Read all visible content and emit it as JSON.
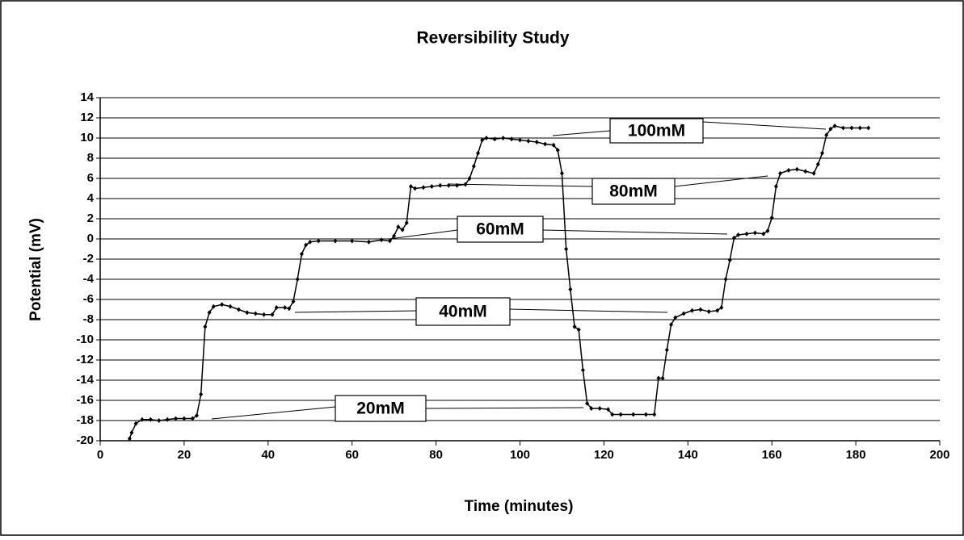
{
  "chart_data": {
    "type": "line",
    "title": "Reversibility Study",
    "xlabel": "Time (minutes)",
    "ylabel": "Potential (mV)",
    "xlim": [
      0,
      200
    ],
    "xticks": [
      0,
      20,
      40,
      60,
      80,
      100,
      120,
      140,
      160,
      180,
      200
    ],
    "ylim": [
      -20,
      14
    ],
    "yticks": [
      -20,
      -18,
      -16,
      -14,
      -12,
      -10,
      -8,
      -6,
      -4,
      -2,
      0,
      2,
      4,
      6,
      8,
      10,
      12,
      14
    ],
    "grid": true,
    "annotations": [
      "100mM",
      "80mM",
      "60mM",
      "40mM",
      "20mM"
    ],
    "series": [
      {
        "color": "#000000",
        "x": [
          7,
          7.5,
          8.5,
          10,
          12,
          14,
          16,
          18,
          20,
          22,
          23,
          24,
          25,
          26,
          27,
          29,
          31,
          33,
          35,
          37,
          39,
          41,
          42,
          44,
          45,
          46,
          47,
          48,
          49,
          50,
          52,
          56,
          60,
          64,
          67,
          69,
          70,
          71,
          72,
          73,
          74,
          75,
          77,
          79,
          81,
          83,
          85,
          87,
          88,
          89,
          90,
          91,
          92,
          94,
          96,
          98,
          100,
          102,
          104,
          106,
          108,
          109,
          110,
          111,
          112,
          113,
          114,
          115,
          116,
          117,
          119,
          121,
          122,
          124,
          127,
          130,
          132,
          133,
          134,
          135,
          136,
          137,
          139,
          141,
          143,
          145,
          147,
          148,
          149,
          150,
          151,
          152,
          154,
          156,
          158,
          159,
          160,
          161,
          162,
          164,
          166,
          168,
          170,
          171,
          172,
          173,
          174,
          175,
          177,
          179,
          181,
          183
        ],
        "values": [
          -19.8,
          -19.2,
          -18.3,
          -17.9,
          -17.9,
          -18,
          -17.9,
          -17.8,
          -17.8,
          -17.8,
          -17.5,
          -15.4,
          -8.7,
          -7.3,
          -6.7,
          -6.5,
          -6.7,
          -7,
          -7.3,
          -7.4,
          -7.5,
          -7.5,
          -6.8,
          -6.8,
          -6.9,
          -6.2,
          -4,
          -1.5,
          -0.6,
          -0.3,
          -0.2,
          -0.2,
          -0.2,
          -0.3,
          -0.1,
          -0.2,
          0.3,
          1.2,
          0.9,
          1.6,
          5.2,
          5,
          5.1,
          5.2,
          5.3,
          5.3,
          5.3,
          5.4,
          6,
          7.2,
          8.5,
          9.8,
          10,
          9.9,
          10,
          9.9,
          9.8,
          9.7,
          9.6,
          9.4,
          9.3,
          8.8,
          6.5,
          -1,
          -5,
          -8.7,
          -9,
          -13,
          -16.3,
          -16.8,
          -16.8,
          -16.9,
          -17.4,
          -17.4,
          -17.4,
          -17.4,
          -17.4,
          -13.8,
          -13.8,
          -11,
          -8.5,
          -7.8,
          -7.4,
          -7.1,
          -7,
          -7.2,
          -7.1,
          -6.8,
          -4,
          -2.1,
          0.1,
          0.4,
          0.5,
          0.6,
          0.5,
          0.8,
          2.1,
          5.2,
          6.5,
          6.8,
          6.9,
          6.7,
          6.5,
          7.4,
          8.5,
          10.3,
          10.9,
          11.2,
          11,
          11,
          11,
          11
        ]
      }
    ]
  }
}
